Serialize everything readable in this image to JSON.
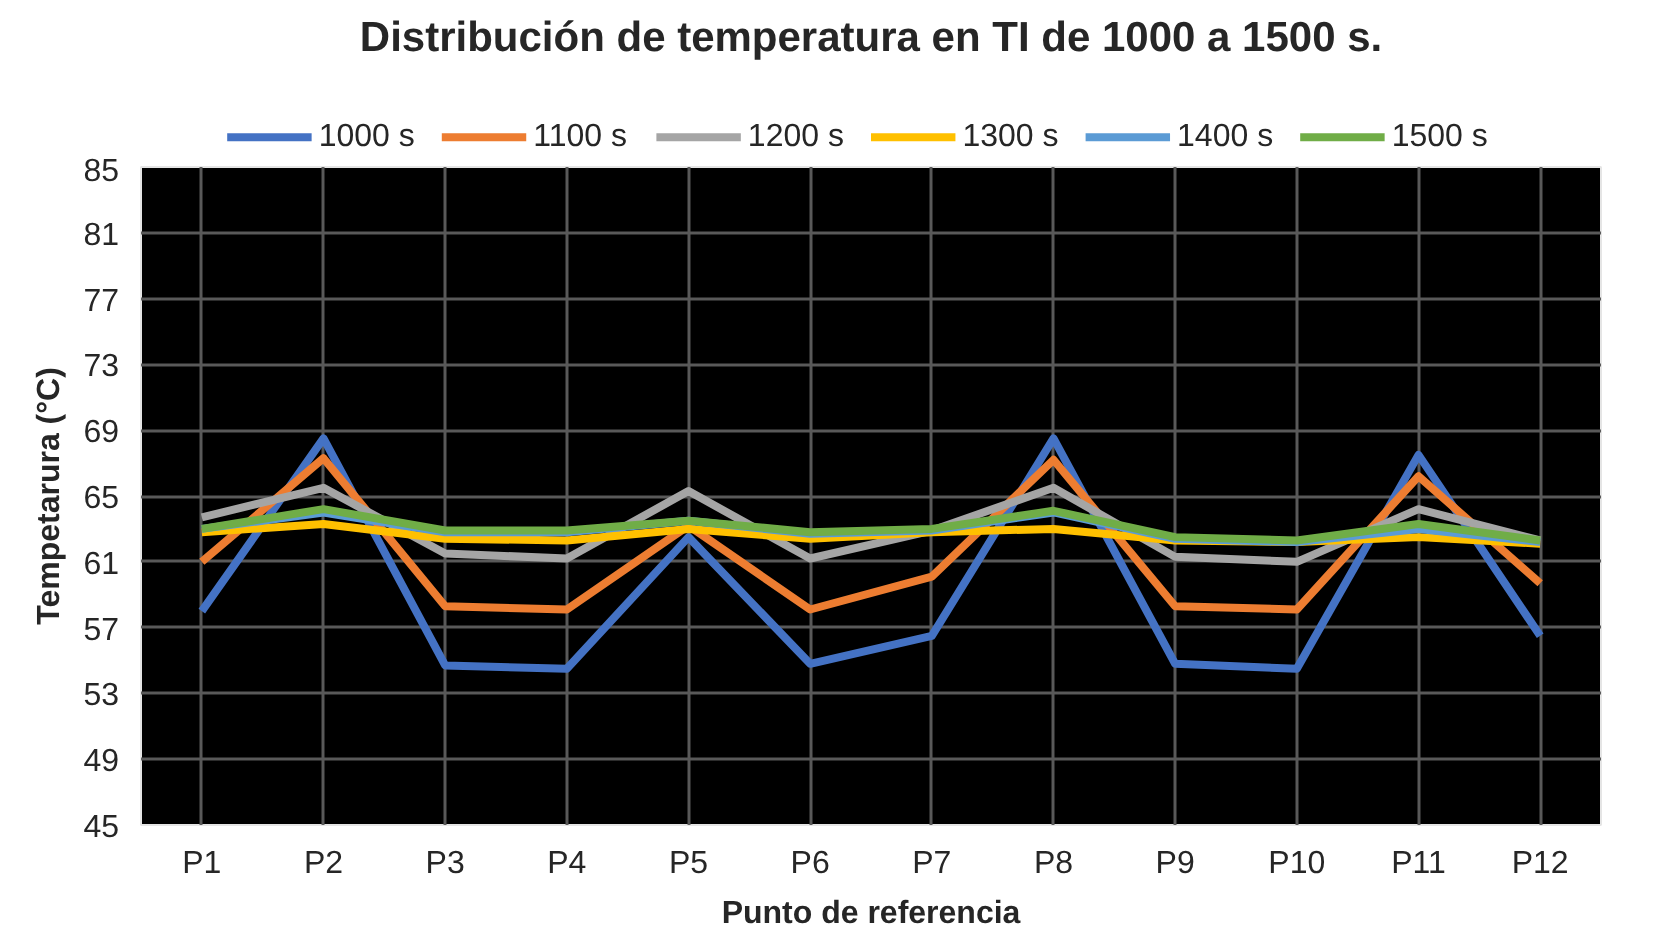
{
  "chart_data": {
    "type": "line",
    "title": "Distribución de temperatura en TI de 1000 a 1500 s.",
    "xlabel": "Punto de referencia",
    "ylabel": "Tempetarura (°C)",
    "categories": [
      "P1",
      "P2",
      "P3",
      "P4",
      "P5",
      "P6",
      "P7",
      "P8",
      "P9",
      "P10",
      "P11",
      "P12"
    ],
    "series": [
      {
        "name": "1000 s",
        "color": "#4472c4",
        "values": [
          58,
          68.5,
          54.7,
          54.5,
          62.5,
          54.8,
          56.5,
          68.5,
          54.8,
          54.5,
          67.5,
          56.5
        ]
      },
      {
        "name": "1100 s",
        "color": "#ed7d31",
        "values": [
          61,
          67.3,
          58.3,
          58.1,
          63.2,
          58.1,
          60.1,
          67.2,
          58.3,
          58.1,
          66.2,
          59.7
        ]
      },
      {
        "name": "1200 s",
        "color": "#a5a5a5",
        "values": [
          63.7,
          65.5,
          61.5,
          61.2,
          65.3,
          61.2,
          62.9,
          65.5,
          61.3,
          61,
          64.2,
          62.3
        ]
      },
      {
        "name": "1300 s",
        "color": "#ffc000",
        "values": [
          62.8,
          63.3,
          62.4,
          62.3,
          63,
          62.4,
          62.8,
          63,
          62.3,
          62.2,
          62.5,
          62.1
        ]
      },
      {
        "name": "1400 s",
        "color": "#5b9bd5",
        "values": [
          63,
          64,
          62.8,
          62.8,
          63.5,
          62.7,
          62.9,
          64,
          62.4,
          62.2,
          63,
          62.2
        ]
      },
      {
        "name": "1500 s",
        "color": "#70ad47",
        "values": [
          63,
          64.2,
          62.9,
          62.9,
          63.5,
          62.8,
          63,
          64.1,
          62.5,
          62.3,
          63.3,
          62.3
        ]
      }
    ],
    "ylim": [
      45,
      85
    ],
    "yticks": [
      45,
      49,
      53,
      57,
      61,
      65,
      69,
      73,
      77,
      81,
      85
    ],
    "grid": true,
    "legend": "top",
    "marker": "none",
    "line_style": "solid"
  }
}
